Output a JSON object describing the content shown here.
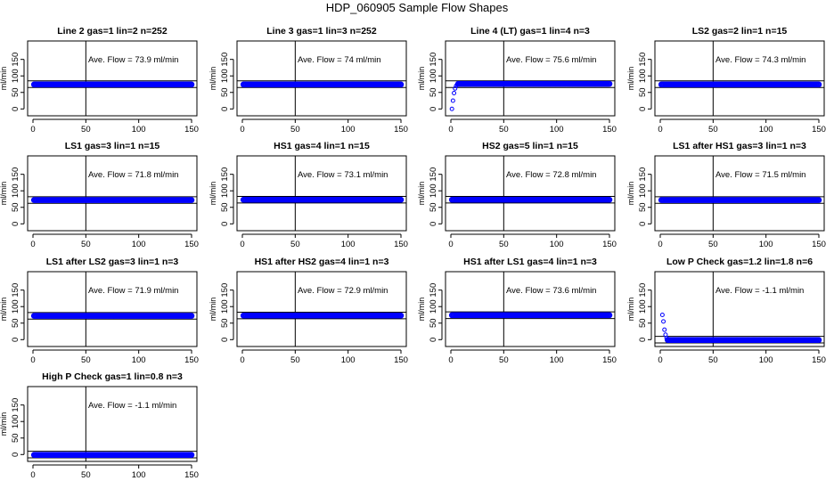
{
  "figure": {
    "title": "HDP_060905  Sample Flow Shapes"
  },
  "style": {
    "point_color": "#0000ff",
    "axis_color": "#000000"
  },
  "chart_data": [
    {
      "type": "scatter",
      "title": "Line 2 gas=1 lin=2 n=252",
      "ylabel": "ml/min",
      "annotation": "Ave. Flow =  73.9  ml/min",
      "xlim": [
        0,
        150
      ],
      "ylim": [
        -10,
        195
      ],
      "xticks": [
        0,
        50,
        100,
        150
      ],
      "yticks": [
        0,
        50,
        100,
        150
      ],
      "vline": 50,
      "hlines": [
        65,
        85
      ],
      "points": {
        "x_start": 1,
        "x_end": 150,
        "steady": 74,
        "startup": []
      }
    },
    {
      "type": "scatter",
      "title": "Line 3 gas=1 lin=3 n=252",
      "ylabel": "ml/min",
      "annotation": "Ave. Flow =  74  ml/min",
      "xlim": [
        0,
        150
      ],
      "ylim": [
        -10,
        195
      ],
      "xticks": [
        0,
        50,
        100,
        150
      ],
      "yticks": [
        0,
        50,
        100,
        150
      ],
      "vline": 50,
      "hlines": [
        65,
        85
      ],
      "points": {
        "x_start": 1,
        "x_end": 150,
        "steady": 74,
        "startup": []
      }
    },
    {
      "type": "scatter",
      "title": "Line 4 (LT) gas=1 lin=4 n=3",
      "ylabel": "ml/min",
      "annotation": "Ave. Flow =  75.6  ml/min",
      "xlim": [
        0,
        150
      ],
      "ylim": [
        -10,
        195
      ],
      "xticks": [
        0,
        50,
        100,
        150
      ],
      "yticks": [
        0,
        50,
        100,
        150
      ],
      "vline": 50,
      "hlines": [
        65,
        85
      ],
      "points": {
        "x_start": 7,
        "x_end": 150,
        "steady": 76,
        "startup": [
          [
            1,
            0
          ],
          [
            2,
            25
          ],
          [
            3,
            48
          ],
          [
            4,
            62
          ],
          [
            5,
            70
          ],
          [
            6,
            74
          ]
        ]
      }
    },
    {
      "type": "scatter",
      "title": "LS2 gas=2 lin=1 n=15",
      "ylabel": "ml/min",
      "annotation": "Ave. Flow =  74.3  ml/min",
      "xlim": [
        0,
        150
      ],
      "ylim": [
        -10,
        195
      ],
      "xticks": [
        0,
        50,
        100,
        150
      ],
      "yticks": [
        0,
        50,
        100,
        150
      ],
      "vline": 50,
      "hlines": [
        65,
        85
      ],
      "points": {
        "x_start": 1,
        "x_end": 150,
        "steady": 74,
        "startup": []
      }
    },
    {
      "type": "scatter",
      "title": "LS1 gas=3 lin=1 n=15",
      "ylabel": "ml/min",
      "annotation": "Ave. Flow =  71.8  ml/min",
      "xlim": [
        0,
        150
      ],
      "ylim": [
        -10,
        195
      ],
      "xticks": [
        0,
        50,
        100,
        150
      ],
      "yticks": [
        0,
        50,
        100,
        150
      ],
      "vline": 50,
      "hlines": [
        62,
        82
      ],
      "points": {
        "x_start": 1,
        "x_end": 150,
        "steady": 72,
        "startup": []
      }
    },
    {
      "type": "scatter",
      "title": "HS1 gas=4 lin=1 n=15",
      "ylabel": "ml/min",
      "annotation": "Ave. Flow =  73.1  ml/min",
      "xlim": [
        0,
        150
      ],
      "ylim": [
        -10,
        195
      ],
      "xticks": [
        0,
        50,
        100,
        150
      ],
      "yticks": [
        0,
        50,
        100,
        150
      ],
      "vline": 50,
      "hlines": [
        63,
        83
      ],
      "points": {
        "x_start": 1,
        "x_end": 150,
        "steady": 73,
        "startup": []
      }
    },
    {
      "type": "scatter",
      "title": "HS2 gas=5 lin=1 n=15",
      "ylabel": "ml/min",
      "annotation": "Ave. Flow =  72.8  ml/min",
      "xlim": [
        0,
        150
      ],
      "ylim": [
        -10,
        195
      ],
      "xticks": [
        0,
        50,
        100,
        150
      ],
      "yticks": [
        0,
        50,
        100,
        150
      ],
      "vline": 50,
      "hlines": [
        63,
        83
      ],
      "points": {
        "x_start": 1,
        "x_end": 150,
        "steady": 73,
        "startup": []
      }
    },
    {
      "type": "scatter",
      "title": "LS1 after HS1 gas=3 lin=1 n=3",
      "ylabel": "ml/min",
      "annotation": "Ave. Flow =  71.5  ml/min",
      "xlim": [
        0,
        150
      ],
      "ylim": [
        -10,
        195
      ],
      "xticks": [
        0,
        50,
        100,
        150
      ],
      "yticks": [
        0,
        50,
        100,
        150
      ],
      "vline": 50,
      "hlines": [
        62,
        82
      ],
      "points": {
        "x_start": 1,
        "x_end": 150,
        "steady": 72,
        "startup": []
      }
    },
    {
      "type": "scatter",
      "title": "LS1 after LS2 gas=3 lin=1 n=3",
      "ylabel": "ml/min",
      "annotation": "Ave. Flow =  71.9  ml/min",
      "xlim": [
        0,
        150
      ],
      "ylim": [
        -10,
        195
      ],
      "xticks": [
        0,
        50,
        100,
        150
      ],
      "yticks": [
        0,
        50,
        100,
        150
      ],
      "vline": 50,
      "hlines": [
        62,
        82
      ],
      "points": {
        "x_start": 1,
        "x_end": 150,
        "steady": 72,
        "startup": []
      }
    },
    {
      "type": "scatter",
      "title": "HS1 after HS2 gas=4 lin=1 n=3",
      "ylabel": "ml/min",
      "annotation": "Ave. Flow =  72.9  ml/min",
      "xlim": [
        0,
        150
      ],
      "ylim": [
        -10,
        195
      ],
      "xticks": [
        0,
        50,
        100,
        150
      ],
      "yticks": [
        0,
        50,
        100,
        150
      ],
      "vline": 50,
      "hlines": [
        63,
        83
      ],
      "points": {
        "x_start": 1,
        "x_end": 150,
        "steady": 73,
        "startup": []
      }
    },
    {
      "type": "scatter",
      "title": "HS1 after LS1 gas=4 lin=1 n=3",
      "ylabel": "ml/min",
      "annotation": "Ave. Flow =  73.6  ml/min",
      "xlim": [
        0,
        150
      ],
      "ylim": [
        -10,
        195
      ],
      "xticks": [
        0,
        50,
        100,
        150
      ],
      "yticks": [
        0,
        50,
        100,
        150
      ],
      "vline": 50,
      "hlines": [
        64,
        84
      ],
      "points": {
        "x_start": 1,
        "x_end": 150,
        "steady": 74,
        "startup": []
      }
    },
    {
      "type": "scatter",
      "title": "Low P Check gas=1.2 lin=1.8 n=6",
      "ylabel": "ml/min",
      "annotation": "Ave. Flow =  -1.1  ml/min",
      "xlim": [
        0,
        150
      ],
      "ylim": [
        -10,
        195
      ],
      "xticks": [
        0,
        50,
        100,
        150
      ],
      "yticks": [
        0,
        50,
        100,
        150
      ],
      "vline": 50,
      "hlines": [
        -10,
        10
      ],
      "points": {
        "x_start": 7,
        "x_end": 150,
        "steady": -1,
        "startup": [
          [
            2,
            75
          ],
          [
            3,
            55
          ],
          [
            4,
            30
          ],
          [
            5,
            15
          ],
          [
            6,
            5
          ]
        ]
      }
    },
    {
      "type": "scatter",
      "title": "High P Check gas=1 lin=0.8 n=3",
      "ylabel": "ml/min",
      "annotation": "Ave. Flow =  -1.1  ml/min",
      "xlim": [
        0,
        150
      ],
      "ylim": [
        -10,
        195
      ],
      "xticks": [
        0,
        50,
        100,
        150
      ],
      "yticks": [
        0,
        50,
        100,
        150
      ],
      "vline": 50,
      "hlines": [
        -10,
        10
      ],
      "points": {
        "x_start": 1,
        "x_end": 150,
        "steady": -1,
        "startup": []
      }
    }
  ]
}
